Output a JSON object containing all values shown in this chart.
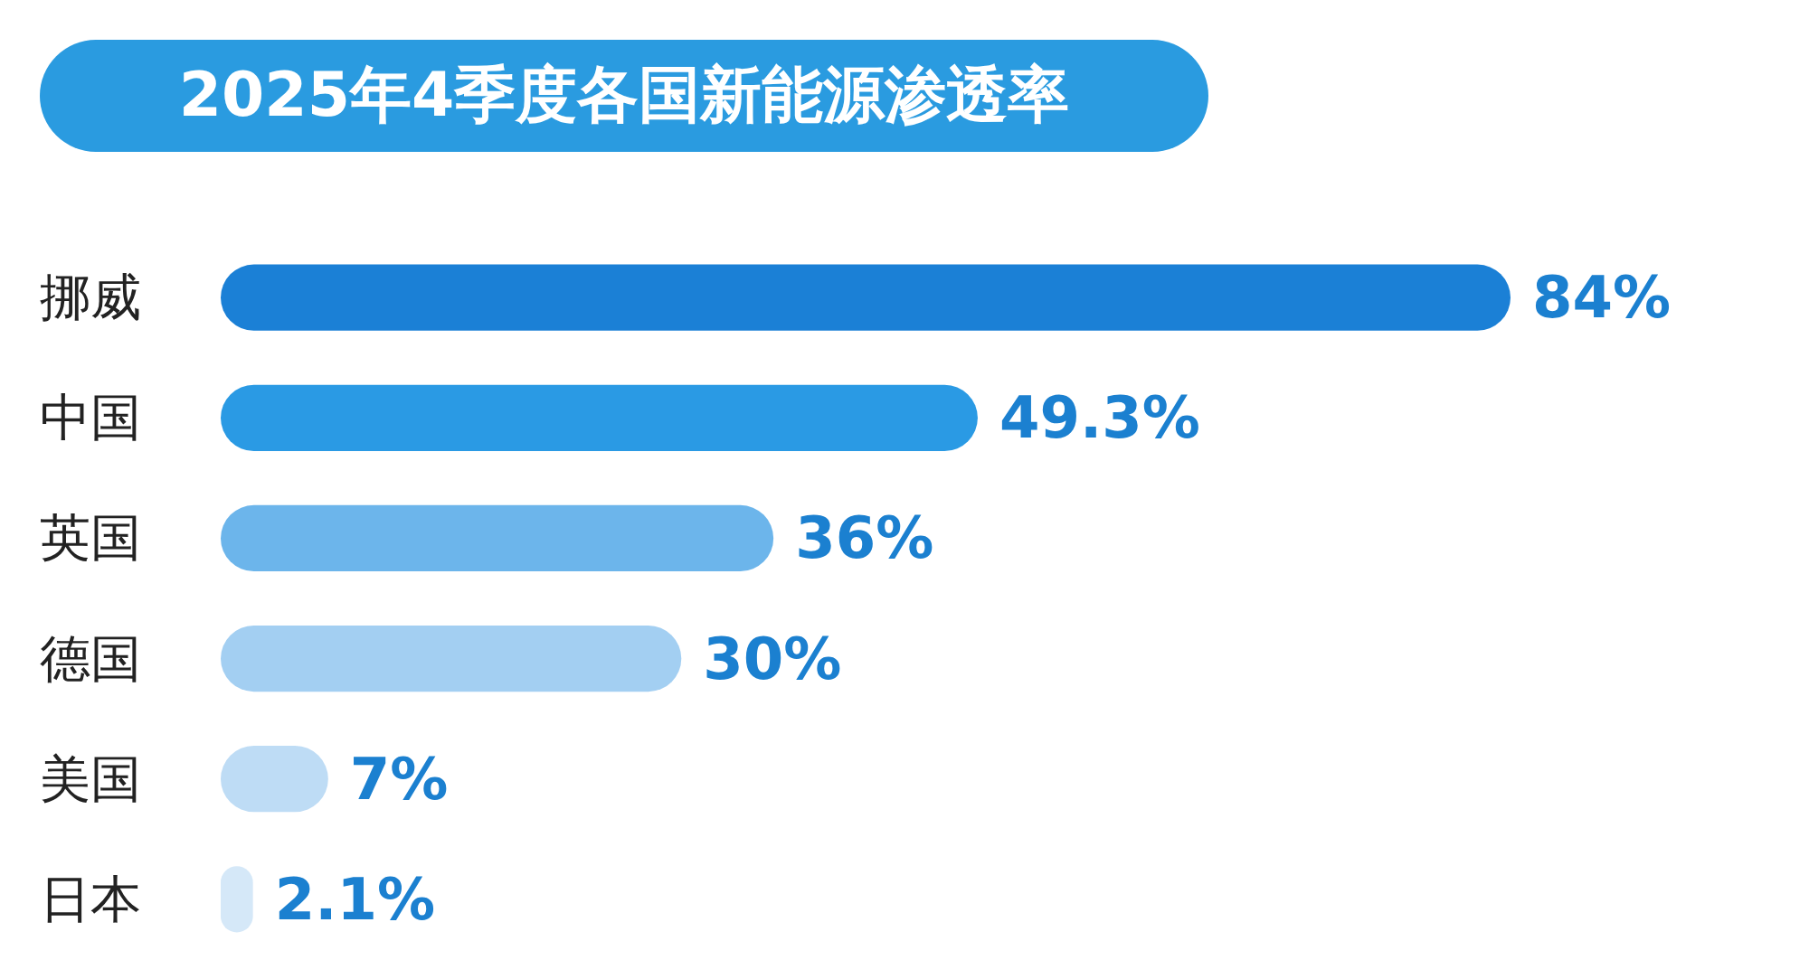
{
  "chart_data": {
    "type": "bar",
    "orientation": "horizontal",
    "title": "2025年4季度各国新能源渗透率",
    "categories": [
      "挪威",
      "中国",
      "英国",
      "德国",
      "美国",
      "日本"
    ],
    "values": [
      84,
      49.3,
      36,
      30,
      7,
      2.1
    ],
    "value_labels": [
      "84%",
      "49.3%",
      "36%",
      "30%",
      "7%",
      "2.1%"
    ],
    "colors": [
      "#1b80d6",
      "#2a9ae4",
      "#6cb5eb",
      "#a3cff2",
      "#bedcf5",
      "#d5e8f8"
    ]
  }
}
